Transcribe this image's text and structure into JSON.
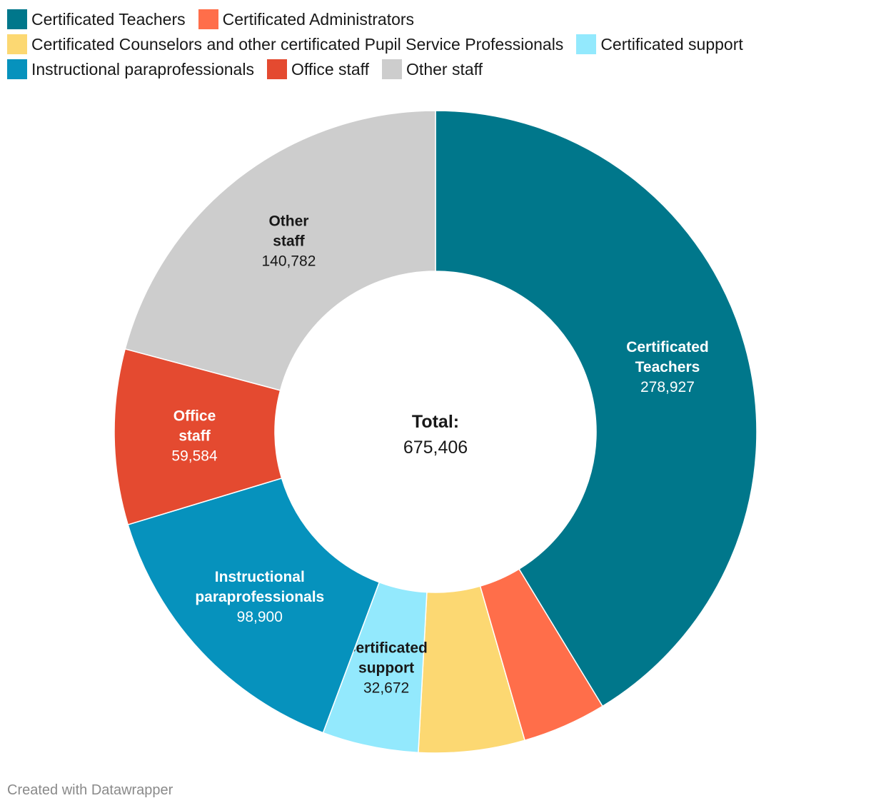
{
  "chart_data": {
    "type": "pie",
    "donut": true,
    "series": [
      {
        "name": "Certificated Teachers",
        "value": 278927,
        "color": "#00778b",
        "label_lines": [
          "Certificated",
          "Teachers"
        ],
        "label_value": "278,927",
        "label_color": "#ffffff",
        "show_label": true
      },
      {
        "name": "Certificated Administrators",
        "value": 28500,
        "color": "#ff6e4a",
        "show_label": false
      },
      {
        "name": "Certificated Counselors and other certificated Pupil Service Professionals",
        "value": 36041,
        "color": "#fcd872",
        "show_label": false
      },
      {
        "name": "Certificated support",
        "value": 32672,
        "color": "#93e9fd",
        "label_lines": [
          "Certificated",
          "support"
        ],
        "label_value": "32,672",
        "label_color": "#181818",
        "show_label": true
      },
      {
        "name": "Instructional paraprofessionals",
        "value": 98900,
        "color": "#0692bd",
        "label_lines": [
          "Instructional",
          "paraprofessionals"
        ],
        "label_value": "98,900",
        "label_color": "#ffffff",
        "show_label": true
      },
      {
        "name": "Office staff",
        "value": 59584,
        "color": "#e44a30",
        "label_lines": [
          "Office",
          "staff"
        ],
        "label_value": "59,584",
        "label_color": "#ffffff",
        "show_label": true
      },
      {
        "name": "Other staff",
        "value": 140782,
        "color": "#cdcdcd",
        "label_lines": [
          "Other",
          "staff"
        ],
        "label_value": "140,782",
        "label_color": "#181818",
        "show_label": true
      }
    ],
    "center": {
      "title": "Total:",
      "value": "675,406"
    },
    "legend_position": "top"
  },
  "credit": "Created with Datawrapper"
}
